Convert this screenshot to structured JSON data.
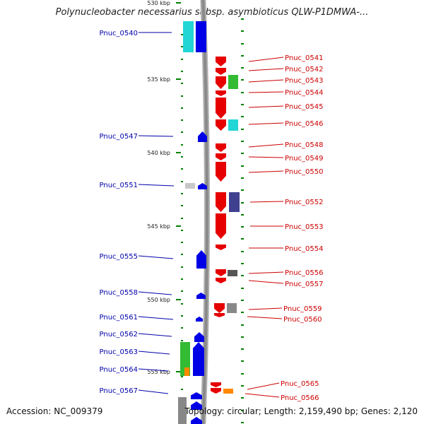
{
  "title": "Polynucleobacter necessarius subsp. asymbioticus QLW-P1DMWA-...",
  "accession": "Accession: NC_009379",
  "topology": "Topology: circular; Length: 2,159,490 bp; Genes: 2,120",
  "colors": {
    "backbone": "#8a8a8a",
    "forward_gene": "#0000e6",
    "reverse_gene": "#e60000",
    "forward_label": "#0000aa",
    "reverse_label": "#cc0000",
    "tick": "#008000",
    "cyan": "#22d6d6",
    "green": "#33bb33",
    "orange": "#ff8800",
    "navy": "#404090",
    "grey": "#888888",
    "light_grey": "#c8c8c8"
  },
  "scale_labels": [
    "530 kbp",
    "535 kbp",
    "540 kbp",
    "545 kbp",
    "550 kbp",
    "555 kbp"
  ],
  "left_labels": [
    "Pnuc_0540",
    "Pnuc_0547",
    "Pnuc_0551",
    "Pnuc_0555",
    "Pnuc_0558",
    "Pnuc_0561",
    "Pnuc_0562",
    "Pnuc_0563",
    "Pnuc_0564",
    "Pnuc_0567"
  ],
  "right_labels": [
    "Pnuc_0541",
    "Pnuc_0542",
    "Pnuc_0543",
    "Pnuc_0544",
    "Pnuc_0545",
    "Pnuc_0546",
    "Pnuc_0548",
    "Pnuc_0549",
    "Pnuc_0550",
    "Pnuc_0552",
    "Pnuc_0553",
    "Pnuc_0554",
    "Pnuc_0556",
    "Pnuc_0557",
    "Pnuc_0559",
    "Pnuc_0560",
    "Pnuc_0565",
    "Pnuc_0566"
  ]
}
